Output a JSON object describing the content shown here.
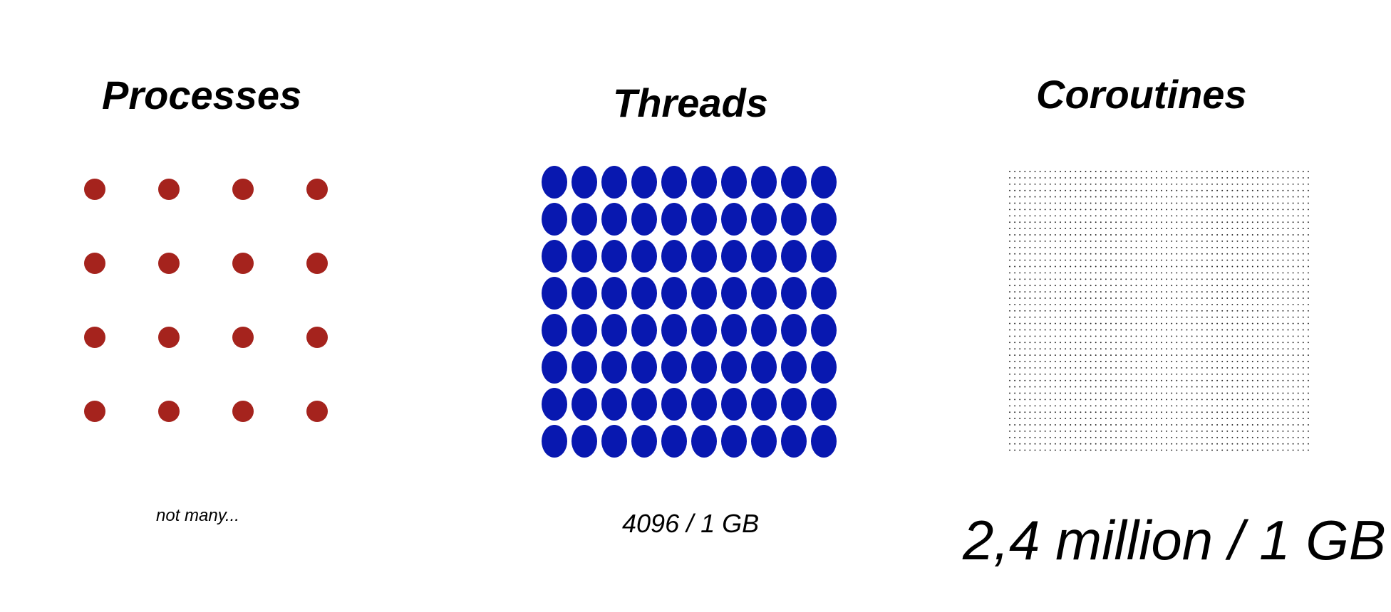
{
  "panels": {
    "processes": {
      "title": "Processes",
      "caption": "not many...",
      "rows": 4,
      "cols": 4,
      "color": "#a5231d"
    },
    "threads": {
      "title": "Threads",
      "caption": "4096 / 1 GB",
      "rows": 8,
      "cols": 10,
      "color": "#0818b0"
    },
    "coroutines": {
      "title": "Coroutines",
      "caption": "2,4 million / 1 GB",
      "rows": 45,
      "cols": 60,
      "color": "#222222"
    }
  }
}
